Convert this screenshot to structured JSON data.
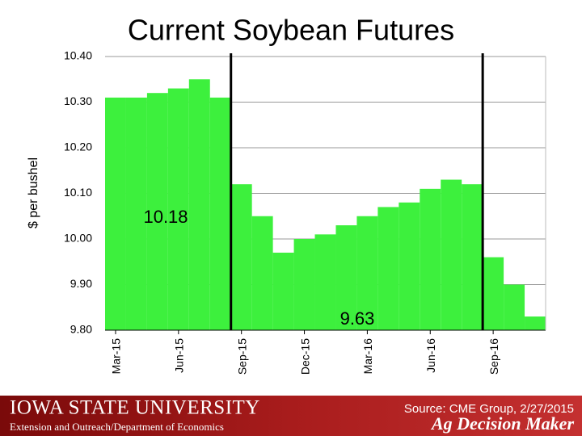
{
  "chart_data": {
    "type": "bar",
    "title": "Current Soybean Futures",
    "y_label": "$ per bushel",
    "categories": [
      "Mar-15",
      null,
      null,
      "Jun-15",
      null,
      null,
      "Sep-15",
      null,
      null,
      "Dec-15",
      null,
      null,
      "Mar-16",
      null,
      null,
      "Jun-16",
      null,
      null,
      "Sep-16",
      null,
      null
    ],
    "values": [
      10.31,
      10.31,
      10.32,
      10.33,
      10.35,
      10.31,
      10.12,
      10.05,
      9.97,
      10.0,
      10.01,
      10.03,
      10.05,
      10.07,
      10.08,
      10.11,
      10.13,
      10.12,
      9.96,
      9.9,
      9.83
    ],
    "color": "#3df03d",
    "ylim": [
      9.8,
      10.4
    ],
    "yticks": [
      {
        "value": 9.8,
        "label": "9.80"
      },
      {
        "value": 9.9,
        "label": "9.90"
      },
      {
        "value": 10.0,
        "label": "10.00"
      },
      {
        "value": 10.1,
        "label": "10.10"
      },
      {
        "value": 10.2,
        "label": "10.20"
      },
      {
        "value": 10.3,
        "label": "10.30"
      },
      {
        "value": 10.4,
        "label": "10.40"
      }
    ],
    "grid": true,
    "annotations": [
      "10.18",
      "9.63"
    ]
  },
  "footer": {
    "university": "IOWA STATE UNIVERSITY",
    "department": "Extension and Outreach/Department of Economics",
    "source": "Source: CME Group, 2/27/2015",
    "brand": "Ag Decision Maker"
  }
}
